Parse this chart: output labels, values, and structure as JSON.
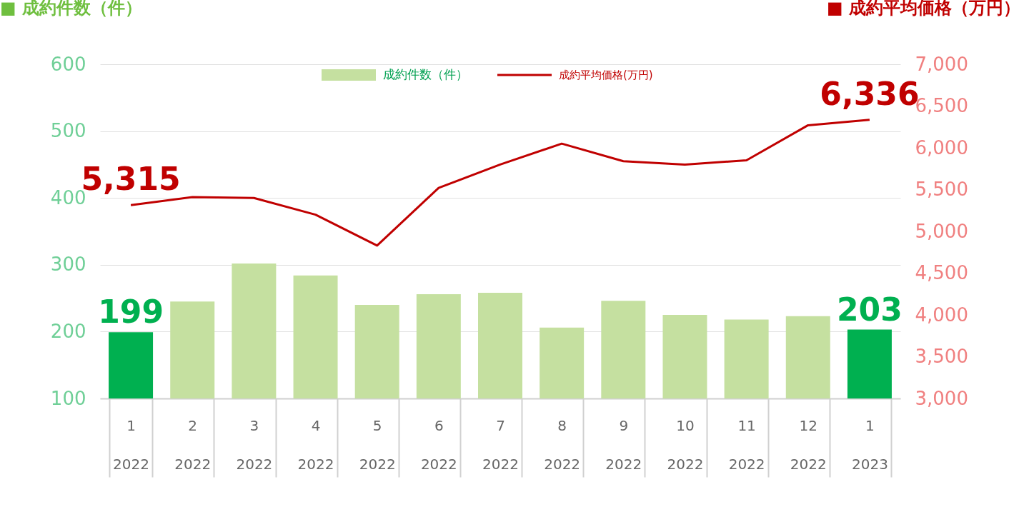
{
  "chart_data": {
    "type": "bar",
    "annotations": [
      "■ 成約件数（件）",
      "■ 成約平均価格（万円）"
    ],
    "categories": [
      "1\n2022",
      "2\n2022",
      "3\n2022",
      "4\n2022",
      "5\n2022",
      "6\n2022",
      "7\n2022",
      "8\n2022",
      "9\n2022",
      "10\n2022",
      "11\n2022",
      "12\n2022",
      "1\n2023"
    ],
    "series": [
      {
        "name": "成約件数（件）",
        "color": "#c5e0a0",
        "colors": [
          "#00b050",
          "#c5e0a0",
          "#c5e0a0",
          "#c5e0a0",
          "#c5e0a0",
          "#c5e0a0",
          "#c5e0a0",
          "#c5e0a0",
          "#c5e0a0",
          "#c5e0a0",
          "#c5e0a0",
          "#c5e0a0",
          "#00b050"
        ],
        "values": [
          199,
          245,
          302,
          284,
          240,
          256,
          258,
          206,
          246,
          225,
          218,
          223,
          203
        ],
        "value_labels": [
          "199",
          null,
          null,
          null,
          null,
          null,
          null,
          null,
          null,
          null,
          null,
          null,
          "203"
        ]
      },
      {
        "name": "成約平均価格(万円)",
        "type": "line",
        "axis": "y2",
        "color": "#c00000",
        "values": [
          5315,
          5410,
          5400,
          5200,
          4830,
          5520,
          5800,
          6050,
          5840,
          5800,
          5850,
          6270,
          6336
        ],
        "value_labels": [
          "5,315",
          null,
          null,
          null,
          null,
          null,
          null,
          null,
          null,
          null,
          null,
          null,
          "6,336"
        ]
      }
    ],
    "ylim": [
      100,
      600
    ],
    "yticks": [
      100,
      200,
      300,
      400,
      500,
      600
    ],
    "y2lim": [
      3000,
      7000
    ],
    "y2ticks": [
      {
        "value": 3000,
        "label": "3,000"
      },
      {
        "value": 3500,
        "label": "3,500"
      },
      {
        "value": 4000,
        "label": "4,000"
      },
      {
        "value": 4500,
        "label": "4,500"
      },
      {
        "value": 5000,
        "label": "5,000"
      },
      {
        "value": 5500,
        "label": "5,500"
      },
      {
        "value": 6000,
        "label": "6,000"
      },
      {
        "value": 6500,
        "label": "6,500"
      },
      {
        "value": 7000,
        "label": "7,000"
      }
    ],
    "grid": "y",
    "legend": "top",
    "marker": "none",
    "line_style": "solid"
  }
}
